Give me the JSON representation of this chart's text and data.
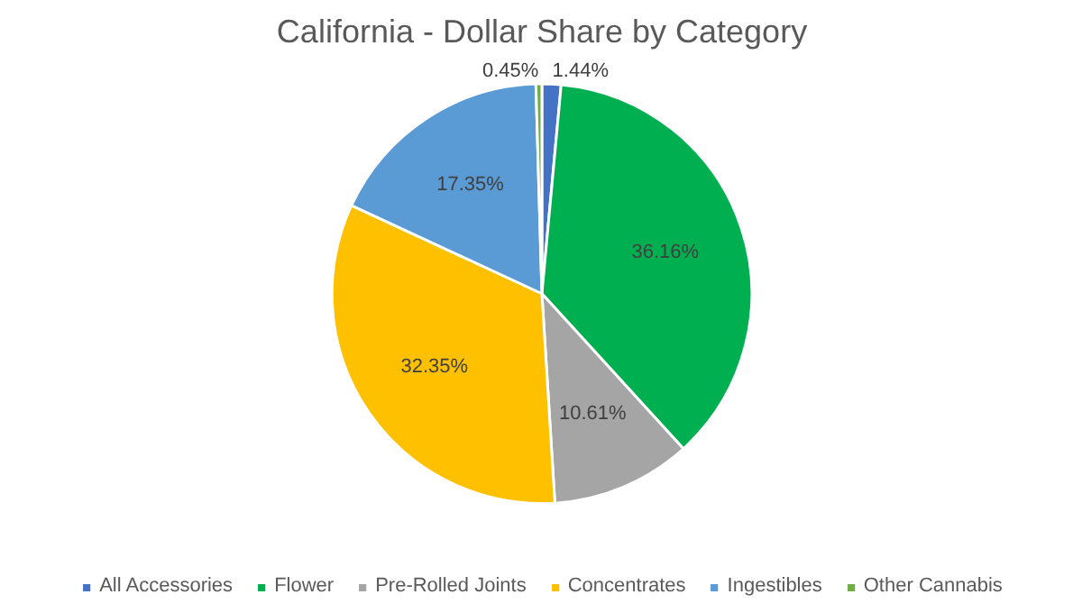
{
  "chart_data": {
    "type": "pie",
    "title": "California - Dollar Share by Category",
    "categories": [
      "All Accessories",
      "Flower",
      "Pre-Rolled Joints",
      "Concentrates",
      "Ingestibles",
      "Other Cannabis"
    ],
    "values": [
      1.44,
      36.16,
      10.61,
      32.35,
      17.35,
      0.45
    ],
    "colors": [
      "#4472c4",
      "#00b050",
      "#a5a5a5",
      "#ffc000",
      "#5b9bd5",
      "#70ad47"
    ],
    "value_labels": [
      "1.44%",
      "36.16%",
      "10.61%",
      "32.35%",
      "17.35%",
      "0.45%"
    ],
    "legend": "bottom"
  }
}
